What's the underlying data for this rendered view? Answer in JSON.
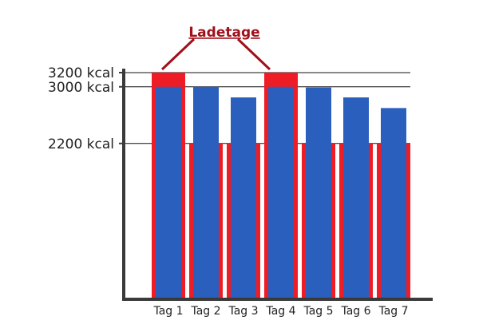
{
  "chart_data": {
    "type": "bar",
    "categories": [
      "Tag 1",
      "Tag 2",
      "Tag 3",
      "Tag 4",
      "Tag 5",
      "Tag 6",
      "Tag 7"
    ],
    "series": [
      {
        "values": [
          3000,
          3000,
          2850,
          3000,
          2990,
          2850,
          2700
        ]
      },
      {
        "values": [
          3200,
          2200,
          2200,
          3200,
          2200,
          2200,
          2200
        ]
      }
    ],
    "y_ticks": [
      {
        "value": 3200,
        "label": "3200 kcal"
      },
      {
        "value": 3000,
        "label": "3000 kcal"
      },
      {
        "value": 2200,
        "label": "2200 kcal"
      }
    ],
    "ylim": [
      0,
      3200
    ],
    "annotation": {
      "text": "Ladetage",
      "targets": [
        "Tag 1",
        "Tag 4"
      ]
    },
    "title": "",
    "xlabel": "",
    "ylabel": "",
    "grid": false,
    "colors": {
      "intake": "#2b5fbd",
      "target": "#ee1c25",
      "annotation": "#a0101a",
      "axis": "#3a3a3a",
      "reference": "#111111"
    }
  }
}
